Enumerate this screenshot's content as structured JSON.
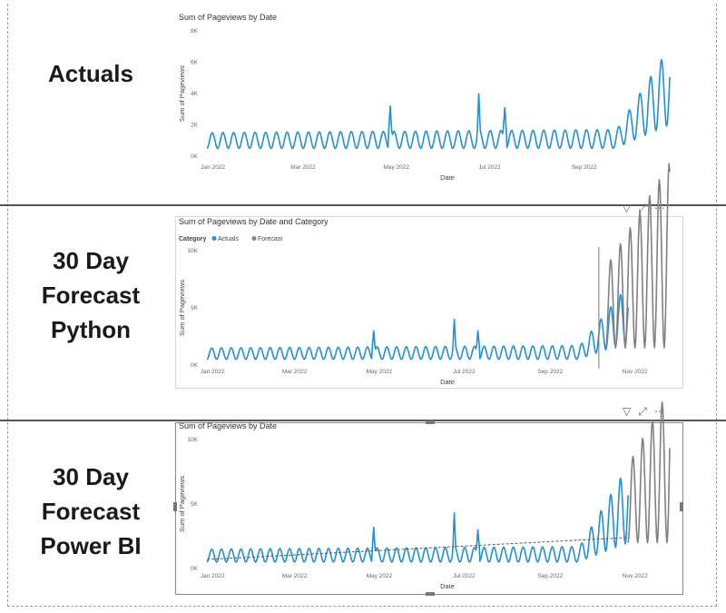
{
  "labels": {
    "row1": [
      "Actuals"
    ],
    "row2": [
      "30 Day",
      "Forecast",
      "Python"
    ],
    "row3": [
      "30 Day",
      "Forecast",
      "Power BI"
    ]
  },
  "visual_icons": {
    "filter": "filter-icon",
    "focus": "focus-mode-icon",
    "more": "more-options-icon"
  },
  "colors": {
    "actuals": "#1f8fe0",
    "forecast": "#808080",
    "trend": "#555555"
  },
  "chart_data": [
    {
      "type": "line",
      "title": "Sum of Pageviews by Date",
      "xlabel": "Date",
      "ylabel": "Sum of Pageviews",
      "yticks": [
        "0K",
        "2K",
        "4K",
        "6K",
        "8K"
      ],
      "ylim": [
        0,
        8000
      ],
      "xticks": [
        "Jan 2022",
        "Mar 2022",
        "May 2022",
        "Jul 2022",
        "Sep 2022"
      ],
      "xlim": [
        "2022-01-01",
        "2022-10-31"
      ],
      "series": [
        {
          "start": "2022-01-01",
          "end": "2022-10-31",
          "weekly_low": 500,
          "weekly_high": 1500,
          "spikes": [
            [
              "2022-05-01",
              3200
            ],
            [
              "2022-06-28",
              4000
            ],
            [
              "2022-07-15",
              3100
            ]
          ],
          "ramp_start": "2022-09-25",
          "ramp_peak": 7000
        }
      ]
    },
    {
      "type": "line",
      "title": "Sum of Pageviews by Date and Category",
      "legend_title": "Category",
      "legend": [
        "Actuals",
        "Forecast"
      ],
      "xlabel": "Date",
      "ylabel": "Sum of Pageviews",
      "yticks": [
        "0K",
        "5K",
        "10K"
      ],
      "ylim": [
        0,
        10000
      ],
      "xticks": [
        "Jan 2022",
        "Mar 2022",
        "May 2022",
        "Jul 2022",
        "Sep 2022",
        "Nov 2022"
      ],
      "xlim": [
        "2022-01-01",
        "2022-11-30"
      ],
      "series": [
        {
          "name": "Actuals",
          "start": "2022-01-01",
          "end": "2022-10-31",
          "weekly_low": 500,
          "weekly_high": 1500,
          "spikes": [
            [
              "2022-05-01",
              3000
            ],
            [
              "2022-06-28",
              4000
            ],
            [
              "2022-07-15",
              3000
            ]
          ],
          "ramp_start": "2022-09-25",
          "ramp_peak": 7000
        },
        {
          "name": "Forecast",
          "start": "2022-10-15",
          "end": "2022-11-30",
          "weekly_low": 1500,
          "weekly_high": 8500
        }
      ]
    },
    {
      "type": "line",
      "title": "Sum of Pageviews by Date",
      "xlabel": "Date",
      "ylabel": "Sum of Pageviews",
      "yticks": [
        "0K",
        "5K",
        "10K"
      ],
      "ylim": [
        0,
        10000
      ],
      "xticks": [
        "Jan 2022",
        "Mar 2022",
        "May 2022",
        "Jul 2022",
        "Sep 2022",
        "Nov 2022"
      ],
      "xlim": [
        "2022-01-01",
        "2022-11-30"
      ],
      "series": [
        {
          "start": "2022-01-01",
          "end": "2022-10-31",
          "weekly_low": 500,
          "weekly_high": 1500,
          "spikes": [
            [
              "2022-05-01",
              3200
            ],
            [
              "2022-06-28",
              4300
            ],
            [
              "2022-07-15",
              3000
            ]
          ],
          "ramp_start": "2022-09-25",
          "ramp_peak": 8000
        },
        {
          "start": "2022-10-31",
          "end": "2022-11-30",
          "weekly_low": 2000,
          "weekly_high": 8000
        }
      ],
      "trend_line": [
        [
          "2022-01-01",
          700
        ],
        [
          "2022-10-31",
          2400
        ]
      ]
    }
  ]
}
